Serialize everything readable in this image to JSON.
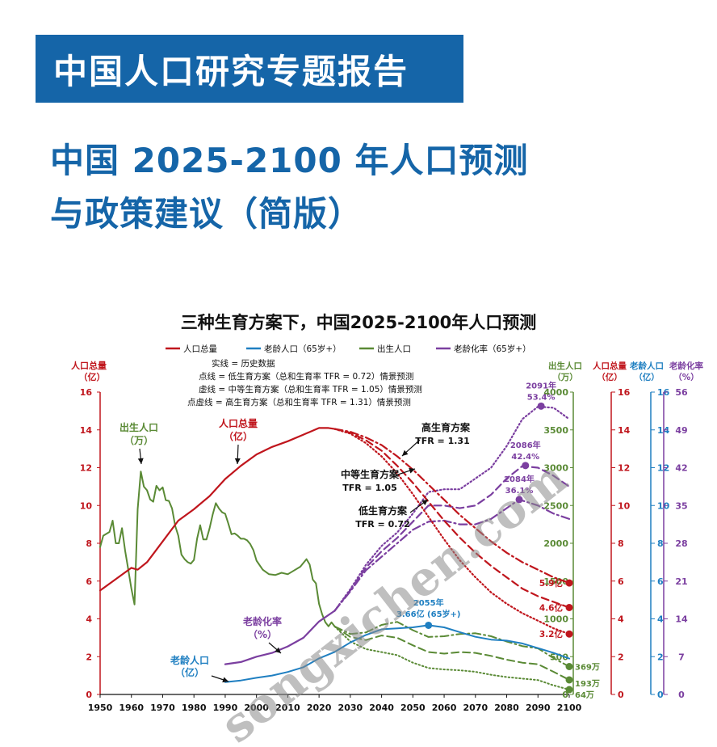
{
  "header": {
    "banner": "中国人口研究专题报告",
    "title_line1": "中国 2025-2100 年人口预测",
    "title_line2": "与政策建议（简版）"
  },
  "watermark": "songxichen.com",
  "colors": {
    "banner": "#1565a8",
    "total": "#c0161d",
    "elderly": "#1f7fc1",
    "births": "#5a8a35",
    "aging": "#7b3fa0"
  },
  "chart_data": {
    "type": "line",
    "title": "三种生育方案下，中国2025-2100年人口预测",
    "legend": [
      {
        "key": "total",
        "label": "人口总量"
      },
      {
        "key": "elderly",
        "label": "老龄人口（65岁+）"
      },
      {
        "key": "births",
        "label": "出生人口"
      },
      {
        "key": "aging",
        "label": "老龄化率（65岁+）"
      }
    ],
    "notes": [
      "实线 = 历史数据",
      "点线 = 低生育方案（总和生育率 TFR = 0.72）情景预测",
      "虚线 = 中等生育方案（总和生育率 TFR = 1.05）情景预测",
      "点虚线 = 高生育方案（总和生育率 TFR = 1.31）情景预测"
    ],
    "axes": {
      "x": {
        "min": 1950,
        "max": 2100,
        "ticks": [
          1950,
          1960,
          1970,
          1980,
          1990,
          2000,
          2010,
          2020,
          2030,
          2040,
          2050,
          2060,
          2070,
          2080,
          2090,
          2100
        ]
      },
      "left_total": {
        "label": "人口总量",
        "unit": "（亿）",
        "min": 0,
        "max": 16,
        "ticks": [
          0,
          2,
          4,
          6,
          8,
          10,
          12,
          14,
          16
        ]
      },
      "right_births": {
        "label": "出生人口",
        "unit": "（万）",
        "min": 0,
        "max": 4000,
        "ticks": [
          0,
          500,
          1000,
          1500,
          2000,
          2500,
          3000,
          3500,
          4000
        ]
      },
      "right_total": {
        "label": "人口总量",
        "unit": "（亿）",
        "min": 0,
        "max": 16,
        "ticks": [
          0,
          2,
          4,
          6,
          8,
          10,
          12,
          14,
          16
        ]
      },
      "right_elderly": {
        "label": "老龄人口",
        "unit": "（亿）",
        "min": 0,
        "max": 16,
        "ticks": [
          0,
          2,
          4,
          6,
          8,
          10,
          12,
          14,
          16
        ]
      },
      "right_aging": {
        "label": "老龄化率",
        "unit": "（%）",
        "min": 0,
        "max": 56,
        "ticks": [
          0,
          7,
          14,
          21,
          28,
          35,
          42,
          49,
          56
        ]
      }
    },
    "series": {
      "total_hist": [
        [
          1950,
          5.5
        ],
        [
          1955,
          6.1
        ],
        [
          1960,
          6.7
        ],
        [
          1962,
          6.6
        ],
        [
          1965,
          7.0
        ],
        [
          1970,
          8.1
        ],
        [
          1975,
          9.2
        ],
        [
          1980,
          9.8
        ],
        [
          1985,
          10.5
        ],
        [
          1990,
          11.4
        ],
        [
          1995,
          12.1
        ],
        [
          2000,
          12.7
        ],
        [
          2005,
          13.1
        ],
        [
          2010,
          13.4
        ],
        [
          2015,
          13.75
        ],
        [
          2020,
          14.1
        ],
        [
          2023,
          14.1
        ],
        [
          2025,
          14.05
        ]
      ],
      "total_low": [
        [
          2025,
          14.05
        ],
        [
          2030,
          13.8
        ],
        [
          2035,
          13.3
        ],
        [
          2040,
          12.6
        ],
        [
          2045,
          11.7
        ],
        [
          2050,
          10.6
        ],
        [
          2055,
          9.4
        ],
        [
          2060,
          8.2
        ],
        [
          2065,
          7.1
        ],
        [
          2070,
          6.2
        ],
        [
          2075,
          5.4
        ],
        [
          2080,
          4.8
        ],
        [
          2085,
          4.3
        ],
        [
          2090,
          3.9
        ],
        [
          2095,
          3.5
        ],
        [
          2100,
          3.2
        ]
      ],
      "total_mid": [
        [
          2025,
          14.05
        ],
        [
          2030,
          13.85
        ],
        [
          2035,
          13.45
        ],
        [
          2040,
          12.9
        ],
        [
          2045,
          12.1
        ],
        [
          2050,
          11.2
        ],
        [
          2055,
          10.2
        ],
        [
          2060,
          9.2
        ],
        [
          2065,
          8.3
        ],
        [
          2070,
          7.5
        ],
        [
          2075,
          6.8
        ],
        [
          2080,
          6.2
        ],
        [
          2085,
          5.6
        ],
        [
          2090,
          5.2
        ],
        [
          2095,
          4.9
        ],
        [
          2100,
          4.6
        ]
      ],
      "total_high": [
        [
          2025,
          14.05
        ],
        [
          2030,
          13.9
        ],
        [
          2035,
          13.6
        ],
        [
          2040,
          13.2
        ],
        [
          2045,
          12.6
        ],
        [
          2050,
          11.9
        ],
        [
          2055,
          11.1
        ],
        [
          2060,
          10.3
        ],
        [
          2065,
          9.5
        ],
        [
          2070,
          8.8
        ],
        [
          2075,
          8.1
        ],
        [
          2080,
          7.5
        ],
        [
          2085,
          7.0
        ],
        [
          2090,
          6.6
        ],
        [
          2095,
          6.2
        ],
        [
          2100,
          5.9
        ]
      ],
      "births_hist": [
        [
          1950,
          1950
        ],
        [
          1951,
          2100
        ],
        [
          1953,
          2150
        ],
        [
          1954,
          2300
        ],
        [
          1955,
          2000
        ],
        [
          1956,
          2000
        ],
        [
          1957,
          2200
        ],
        [
          1958,
          1900
        ],
        [
          1959,
          1650
        ],
        [
          1960,
          1400
        ],
        [
          1961,
          1190
        ],
        [
          1962,
          2450
        ],
        [
          1963,
          2950
        ],
        [
          1964,
          2750
        ],
        [
          1965,
          2700
        ],
        [
          1966,
          2580
        ],
        [
          1967,
          2550
        ],
        [
          1968,
          2760
        ],
        [
          1969,
          2700
        ],
        [
          1970,
          2740
        ],
        [
          1971,
          2570
        ],
        [
          1972,
          2560
        ],
        [
          1973,
          2460
        ],
        [
          1974,
          2230
        ],
        [
          1975,
          2100
        ],
        [
          1976,
          1850
        ],
        [
          1977,
          1790
        ],
        [
          1978,
          1750
        ],
        [
          1979,
          1730
        ],
        [
          1980,
          1780
        ],
        [
          1981,
          2060
        ],
        [
          1982,
          2240
        ],
        [
          1983,
          2050
        ],
        [
          1984,
          2050
        ],
        [
          1985,
          2200
        ],
        [
          1986,
          2380
        ],
        [
          1987,
          2530
        ],
        [
          1988,
          2460
        ],
        [
          1989,
          2410
        ],
        [
          1990,
          2390
        ],
        [
          1991,
          2260
        ],
        [
          1992,
          2120
        ],
        [
          1993,
          2130
        ],
        [
          1994,
          2100
        ],
        [
          1995,
          2060
        ],
        [
          1996,
          2060
        ],
        [
          1997,
          2040
        ],
        [
          1998,
          1990
        ],
        [
          1999,
          1910
        ],
        [
          2000,
          1770
        ],
        [
          2002,
          1650
        ],
        [
          2004,
          1590
        ],
        [
          2006,
          1580
        ],
        [
          2008,
          1610
        ],
        [
          2010,
          1590
        ],
        [
          2012,
          1640
        ],
        [
          2014,
          1690
        ],
        [
          2016,
          1790
        ],
        [
          2017,
          1720
        ],
        [
          2018,
          1520
        ],
        [
          2019,
          1470
        ],
        [
          2020,
          1200
        ],
        [
          2021,
          1060
        ],
        [
          2022,
          956
        ],
        [
          2023,
          902
        ],
        [
          2024,
          954
        ],
        [
          2025,
          900
        ]
      ],
      "births_low": [
        [
          2025,
          900
        ],
        [
          2030,
          700
        ],
        [
          2035,
          600
        ],
        [
          2040,
          560
        ],
        [
          2045,
          520
        ],
        [
          2050,
          420
        ],
        [
          2055,
          350
        ],
        [
          2060,
          330
        ],
        [
          2065,
          320
        ],
        [
          2070,
          300
        ],
        [
          2075,
          260
        ],
        [
          2080,
          230
        ],
        [
          2085,
          210
        ],
        [
          2090,
          190
        ],
        [
          2095,
          120
        ],
        [
          2100,
          64
        ]
      ],
      "births_mid": [
        [
          2025,
          900
        ],
        [
          2030,
          760
        ],
        [
          2035,
          720
        ],
        [
          2040,
          780
        ],
        [
          2045,
          750
        ],
        [
          2050,
          650
        ],
        [
          2055,
          560
        ],
        [
          2060,
          540
        ],
        [
          2065,
          560
        ],
        [
          2070,
          550
        ],
        [
          2075,
          510
        ],
        [
          2080,
          460
        ],
        [
          2085,
          420
        ],
        [
          2090,
          400
        ],
        [
          2095,
          300
        ],
        [
          2100,
          193
        ]
      ],
      "births_high": [
        [
          2025,
          900
        ],
        [
          2030,
          800
        ],
        [
          2035,
          820
        ],
        [
          2040,
          920
        ],
        [
          2045,
          960
        ],
        [
          2050,
          850
        ],
        [
          2055,
          760
        ],
        [
          2060,
          770
        ],
        [
          2065,
          800
        ],
        [
          2070,
          810
        ],
        [
          2075,
          770
        ],
        [
          2080,
          700
        ],
        [
          2085,
          640
        ],
        [
          2090,
          610
        ],
        [
          2095,
          480
        ],
        [
          2100,
          369
        ]
      ],
      "elderly_hist": [
        [
          1990,
          0.65
        ],
        [
          1995,
          0.74
        ],
        [
          2000,
          0.88
        ],
        [
          2005,
          1.0
        ],
        [
          2010,
          1.19
        ],
        [
          2015,
          1.44
        ],
        [
          2020,
          1.91
        ],
        [
          2025,
          2.25
        ]
      ],
      "elderly_proj": [
        [
          2025,
          2.25
        ],
        [
          2030,
          2.75
        ],
        [
          2035,
          3.15
        ],
        [
          2040,
          3.45
        ],
        [
          2045,
          3.5
        ],
        [
          2050,
          3.55
        ],
        [
          2055,
          3.66
        ],
        [
          2060,
          3.55
        ],
        [
          2065,
          3.3
        ],
        [
          2070,
          3.05
        ],
        [
          2075,
          2.9
        ],
        [
          2080,
          2.85
        ],
        [
          2085,
          2.7
        ],
        [
          2090,
          2.45
        ],
        [
          2095,
          2.2
        ],
        [
          2100,
          1.9
        ]
      ],
      "aging_hist": [
        [
          1990,
          5.6
        ],
        [
          1995,
          6.0
        ],
        [
          2000,
          7.0
        ],
        [
          2005,
          7.7
        ],
        [
          2010,
          8.9
        ],
        [
          2015,
          10.5
        ],
        [
          2020,
          13.5
        ],
        [
          2025,
          15.5
        ]
      ],
      "aging_low": [
        [
          2025,
          15.5
        ],
        [
          2030,
          19.5
        ],
        [
          2035,
          24
        ],
        [
          2040,
          27.5
        ],
        [
          2045,
          30
        ],
        [
          2050,
          33.5
        ],
        [
          2055,
          37.5
        ],
        [
          2060,
          38
        ],
        [
          2065,
          38
        ],
        [
          2070,
          40
        ],
        [
          2075,
          42
        ],
        [
          2080,
          46
        ],
        [
          2085,
          51
        ],
        [
          2090,
          53.3
        ],
        [
          2095,
          53.1
        ],
        [
          2100,
          51
        ]
      ],
      "aging_mid": [
        [
          2025,
          15.5
        ],
        [
          2030,
          19.3
        ],
        [
          2035,
          23.5
        ],
        [
          2040,
          26.5
        ],
        [
          2045,
          29
        ],
        [
          2050,
          32
        ],
        [
          2055,
          35
        ],
        [
          2060,
          35
        ],
        [
          2065,
          34.5
        ],
        [
          2070,
          35
        ],
        [
          2075,
          37
        ],
        [
          2080,
          40
        ],
        [
          2085,
          42.3
        ],
        [
          2090,
          42
        ],
        [
          2095,
          40.5
        ],
        [
          2100,
          38.5
        ]
      ],
      "aging_high": [
        [
          2025,
          15.5
        ],
        [
          2030,
          19.1
        ],
        [
          2035,
          23
        ],
        [
          2040,
          25.5
        ],
        [
          2045,
          28
        ],
        [
          2050,
          30.5
        ],
        [
          2055,
          32
        ],
        [
          2060,
          32.2
        ],
        [
          2065,
          31.5
        ],
        [
          2070,
          31.5
        ],
        [
          2075,
          32.5
        ],
        [
          2080,
          34.5
        ],
        [
          2084,
          36.1
        ],
        [
          2090,
          35
        ],
        [
          2095,
          33.5
        ],
        [
          2100,
          32.5
        ]
      ]
    },
    "annotations": {
      "births_label": "出生人口",
      "births_unit": "（万）",
      "total_label": "人口总量",
      "total_unit": "（亿）",
      "aging_label": "老龄化率",
      "aging_unit": "（%）",
      "elderly_label": "老龄人口",
      "elderly_unit": "（亿）",
      "high_name": "高生育方案",
      "high_tfr": "TFR = 1.31",
      "mid_name": "中等生育方案",
      "mid_tfr": "TFR = 1.05",
      "low_name": "低生育方案",
      "low_tfr": "TFR = 0.72",
      "peak_elderly_year": "2055年",
      "peak_elderly_value": "3.66亿 (65岁+)",
      "aging_low_year": "2091年",
      "aging_low_value": "53.4%",
      "aging_mid_year": "2086年",
      "aging_mid_value": "42.4%",
      "aging_high_year": "2084年",
      "aging_high_value": "36.1%",
      "end_total_high": "5.9亿",
      "end_total_mid": "4.6亿",
      "end_total_low": "3.2亿",
      "end_births_high": "369万",
      "end_births_mid": "193万",
      "end_births_low": "64万"
    }
  }
}
